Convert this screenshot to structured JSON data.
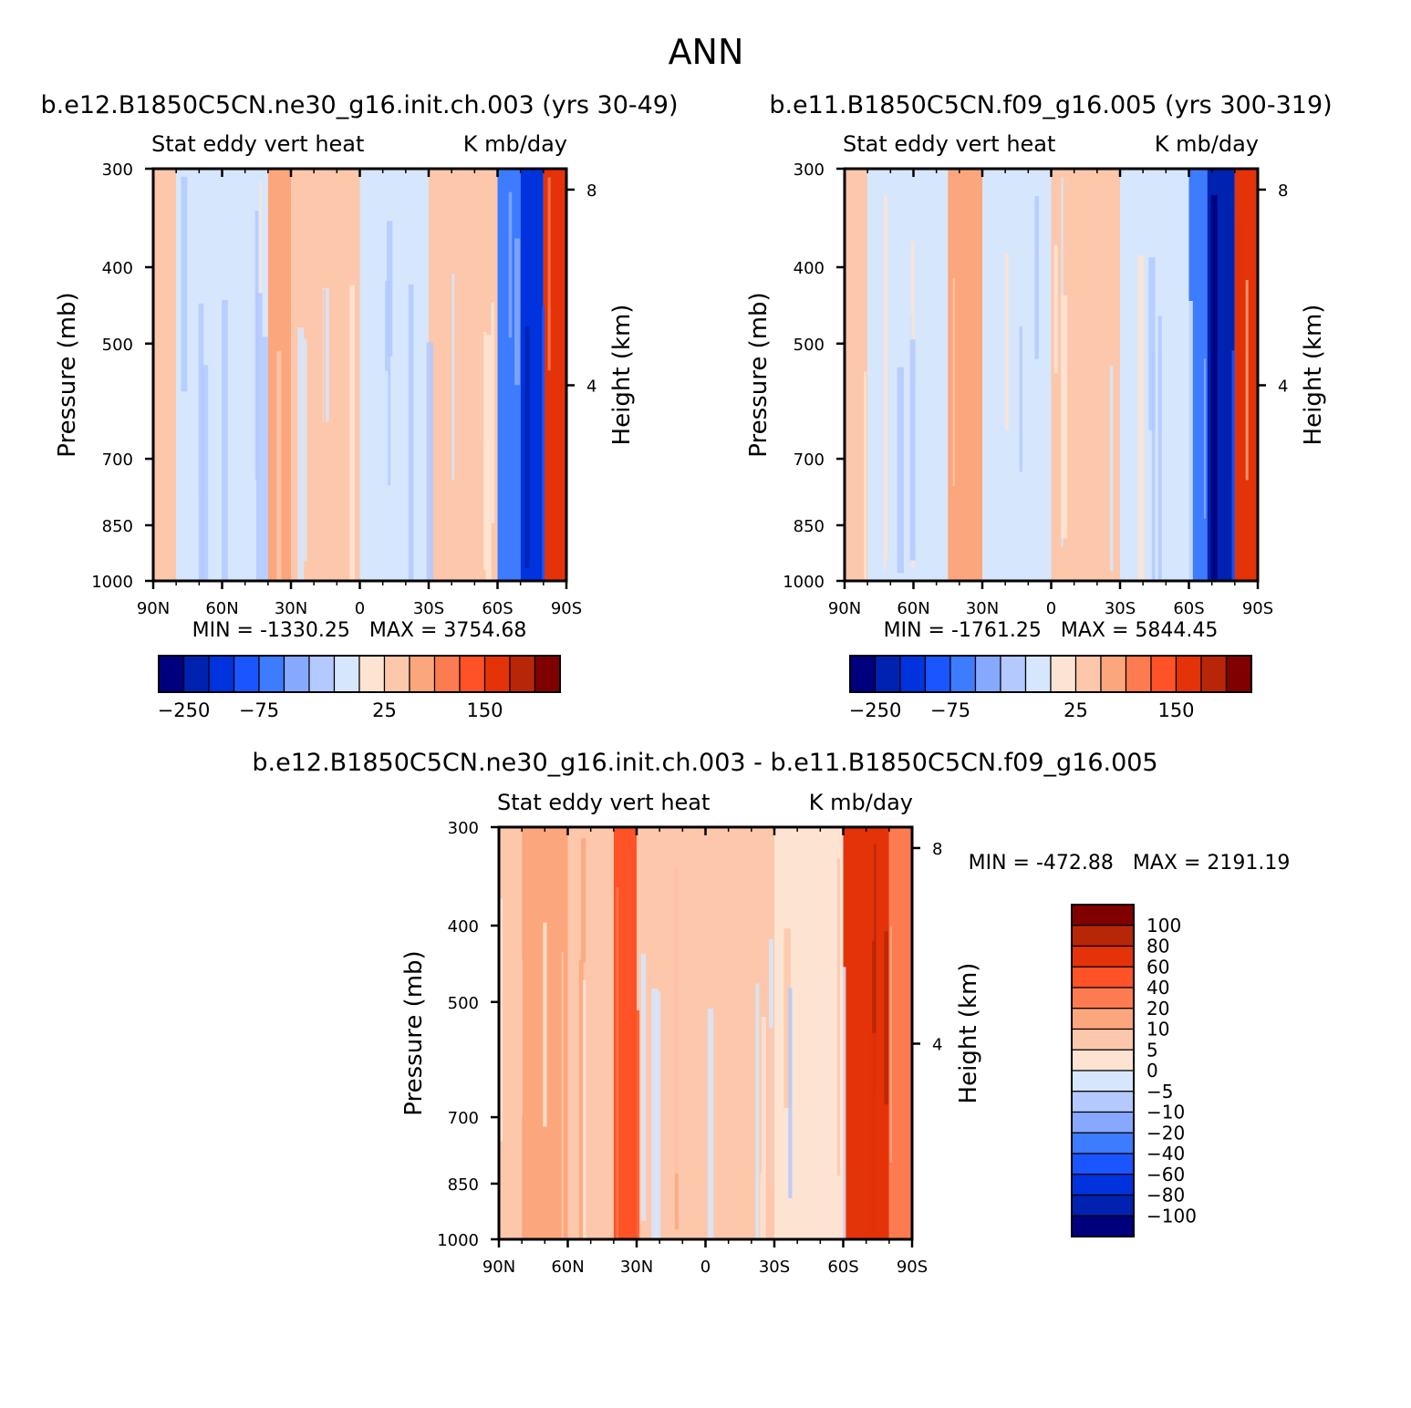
{
  "figure": {
    "title": "ANN"
  },
  "colors": {
    "plot_palette": [
      "#00007f",
      "#0022b0",
      "#0033dd",
      "#1a55ff",
      "#3d7bff",
      "#87a8ff",
      "#b3c9ff",
      "#d6e6fc",
      "#fde4d2",
      "#fcc7ab",
      "#fca67d",
      "#fc7b50",
      "#ff5226",
      "#e43308",
      "#b82608",
      "#800000"
    ],
    "diff_palette": [
      "#00007f",
      "#0022b0",
      "#0033dd",
      "#1a55ff",
      "#3d7bff",
      "#87a8ff",
      "#b3c9ff",
      "#d6e6fc",
      "#fde4d2",
      "#fcc7ab",
      "#fca67d",
      "#fc7b50",
      "#ff5226",
      "#e43308",
      "#b82608",
      "#800000"
    ]
  },
  "panels": [
    {
      "id": "top-left",
      "title": "b.e12.B1850C5CN.ne30_g16.init.ch.003 (yrs 30-49)",
      "subtitle_left": "Stat eddy vert heat",
      "subtitle_right": "K mb/day",
      "ylabel": "Pressure (mb)",
      "ylabel_right": "Height (km)",
      "minmax": "MIN = -1330.25   MAX = 3754.68",
      "colorbar_ticks": [
        "-250",
        "-75",
        "25",
        "150"
      ]
    },
    {
      "id": "top-right",
      "title": "b.e11.B1850C5CN.f09_g16.005 (yrs 300-319)",
      "subtitle_left": "Stat eddy vert heat",
      "subtitle_right": "K mb/day",
      "ylabel": "Pressure (mb)",
      "ylabel_right": "Height (km)",
      "minmax": "MIN = -1761.25   MAX = 5844.45",
      "colorbar_ticks": [
        "-250",
        "-75",
        "25",
        "150"
      ]
    },
    {
      "id": "bottom",
      "title": "b.e12.B1850C5CN.ne30_g16.init.ch.003 - b.e11.B1850C5CN.f09_g16.005",
      "subtitle_left": "Stat eddy vert heat",
      "subtitle_right": "K mb/day",
      "ylabel": "Pressure (mb)",
      "ylabel_right": "Height (km)",
      "minmax": "MIN = -472.88   MAX = 2191.19",
      "colorbar_ticks": [
        "100",
        "80",
        "60",
        "40",
        "20",
        "10",
        "5",
        "0",
        "-5",
        "-10",
        "-20",
        "-40",
        "-60",
        "-80",
        "-100"
      ]
    }
  ],
  "chart_data": [
    {
      "type": "heatmap",
      "title": "b.e12.B1850C5CN.ne30_g16.init.ch.003 (yrs 30-49)",
      "xlabel": "",
      "ylabel": "Pressure (mb)",
      "y2label": "Height (km)",
      "x_ticks": [
        "90N",
        "60N",
        "30N",
        "0",
        "30S",
        "60S",
        "90S"
      ],
      "y_ticks": [
        "300",
        "400",
        "500",
        "700",
        "850",
        "1000"
      ],
      "y2_ticks": [
        "8",
        "4"
      ],
      "ylim": [
        1000,
        300
      ],
      "y_scale": "log",
      "min": -1330.25,
      "max": 3754.68,
      "latitude_bands": [
        {
          "lat": [
            90,
            80
          ],
          "value": 10
        },
        {
          "lat": [
            80,
            62
          ],
          "value": -5
        },
        {
          "lat": [
            62,
            40
          ],
          "value": -5
        },
        {
          "lat": [
            40,
            30
          ],
          "value": 25
        },
        {
          "lat": [
            30,
            0
          ],
          "value": 5
        },
        {
          "lat": [
            0,
            -30
          ],
          "value": -5
        },
        {
          "lat": [
            -30,
            -60
          ],
          "value": 5
        },
        {
          "lat": [
            -60,
            -70
          ],
          "value": -60
        },
        {
          "lat": [
            -70,
            -80
          ],
          "value": -150
        },
        {
          "lat": [
            -80,
            -90
          ],
          "value": 100
        }
      ]
    },
    {
      "type": "heatmap",
      "title": "b.e11.B1850C5CN.f09_g16.005 (yrs 300-319)",
      "xlabel": "",
      "ylabel": "Pressure (mb)",
      "y2label": "Height (km)",
      "x_ticks": [
        "90N",
        "60N",
        "30N",
        "0",
        "30S",
        "60S",
        "90S"
      ],
      "y_ticks": [
        "300",
        "400",
        "500",
        "700",
        "850",
        "1000"
      ],
      "y2_ticks": [
        "8",
        "4"
      ],
      "ylim": [
        1000,
        300
      ],
      "y_scale": "log",
      "min": -1761.25,
      "max": 5844.45,
      "latitude_bands": [
        {
          "lat": [
            90,
            80
          ],
          "value": 10
        },
        {
          "lat": [
            80,
            45
          ],
          "value": -5
        },
        {
          "lat": [
            45,
            30
          ],
          "value": 25
        },
        {
          "lat": [
            30,
            0
          ],
          "value": -5
        },
        {
          "lat": [
            0,
            -30
          ],
          "value": 5
        },
        {
          "lat": [
            -30,
            -60
          ],
          "value": -5
        },
        {
          "lat": [
            -60,
            -68
          ],
          "value": -75
        },
        {
          "lat": [
            -68,
            -80
          ],
          "value": -250
        },
        {
          "lat": [
            -80,
            -90
          ],
          "value": 100
        }
      ]
    },
    {
      "type": "heatmap",
      "title": "b.e12.B1850C5CN.ne30_g16.init.ch.003 - b.e11.B1850C5CN.f09_g16.005",
      "xlabel": "",
      "ylabel": "Pressure (mb)",
      "y2label": "Height (km)",
      "x_ticks": [
        "90N",
        "60N",
        "30N",
        "0",
        "30S",
        "60S",
        "90S"
      ],
      "y_ticks": [
        "300",
        "400",
        "500",
        "700",
        "850",
        "1000"
      ],
      "y2_ticks": [
        "8",
        "4"
      ],
      "ylim": [
        1000,
        300
      ],
      "y_scale": "log",
      "min": -472.88,
      "max": 2191.19,
      "latitude_bands": [
        {
          "lat": [
            90,
            80
          ],
          "value": 5
        },
        {
          "lat": [
            80,
            60
          ],
          "value": 10
        },
        {
          "lat": [
            60,
            40
          ],
          "value": 5
        },
        {
          "lat": [
            40,
            30
          ],
          "value": 40
        },
        {
          "lat": [
            30,
            0
          ],
          "value": 5
        },
        {
          "lat": [
            0,
            -30
          ],
          "value": 5
        },
        {
          "lat": [
            -30,
            -60
          ],
          "value": 0
        },
        {
          "lat": [
            -60,
            -80
          ],
          "value": 60
        },
        {
          "lat": [
            -80,
            -90
          ],
          "value": 20
        }
      ]
    }
  ]
}
